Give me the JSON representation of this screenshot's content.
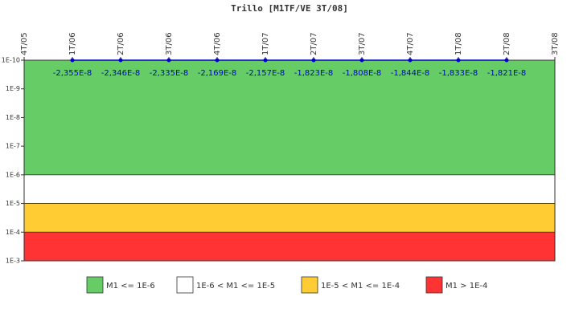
{
  "chart_data": {
    "type": "line",
    "title": "Trillo [M1TF/VE 3T/08]",
    "categories": [
      "4T/05",
      "1T/06",
      "2T/06",
      "3T/06",
      "4T/06",
      "1T/07",
      "2T/07",
      "3T/07",
      "4T/07",
      "1T/08",
      "2T/08",
      "3T/08"
    ],
    "series": [
      {
        "color": "#0000cc",
        "values": [
          null,
          -2.355e-08,
          -2.346e-08,
          -2.335e-08,
          -2.169e-08,
          -2.157e-08,
          -1.823e-08,
          -1.808e-08,
          -1.844e-08,
          -1.833e-08,
          -1.821e-08,
          null
        ],
        "value_labels": [
          null,
          "-2,355E-8",
          "-2,346E-8",
          "-2,335E-8",
          "-2,169E-8",
          "-2,157E-8",
          "-1,823E-8",
          "-1,808E-8",
          "-1,844E-8",
          "-1,833E-8",
          "-1,821E-8",
          null
        ]
      }
    ],
    "bands": [
      {
        "name": "M1 <= 1E-6",
        "color": "#66cc66",
        "from": 1e-10,
        "to": 1e-06
      },
      {
        "name": "1E-6 < M1 <= 1E-5",
        "color": "#ffffff",
        "from": 1e-06,
        "to": 1e-05
      },
      {
        "name": "1E-5 < M1 <= 1E-4",
        "color": "#ffcc33",
        "from": 1e-05,
        "to": 0.0001
      },
      {
        "name": "M1 > 1E-4",
        "color": "#ff3333",
        "from": 0.0001,
        "to": 0.001
      }
    ],
    "ylim": [
      1e-10,
      0.001
    ],
    "y_log": true,
    "y_inverted": true,
    "yticks": [
      {
        "value": 1e-10,
        "label": "1E-10"
      },
      {
        "value": 1e-09,
        "label": "1E-9"
      },
      {
        "value": 1e-08,
        "label": "1E-8"
      },
      {
        "value": 1e-07,
        "label": "1E-7"
      },
      {
        "value": 1e-06,
        "label": "1E-6"
      },
      {
        "value": 1e-05,
        "label": "1E-5"
      },
      {
        "value": 0.0001,
        "label": "1E-4"
      },
      {
        "value": 0.001,
        "label": "1E-3"
      }
    ],
    "legend_position": "bottom"
  }
}
